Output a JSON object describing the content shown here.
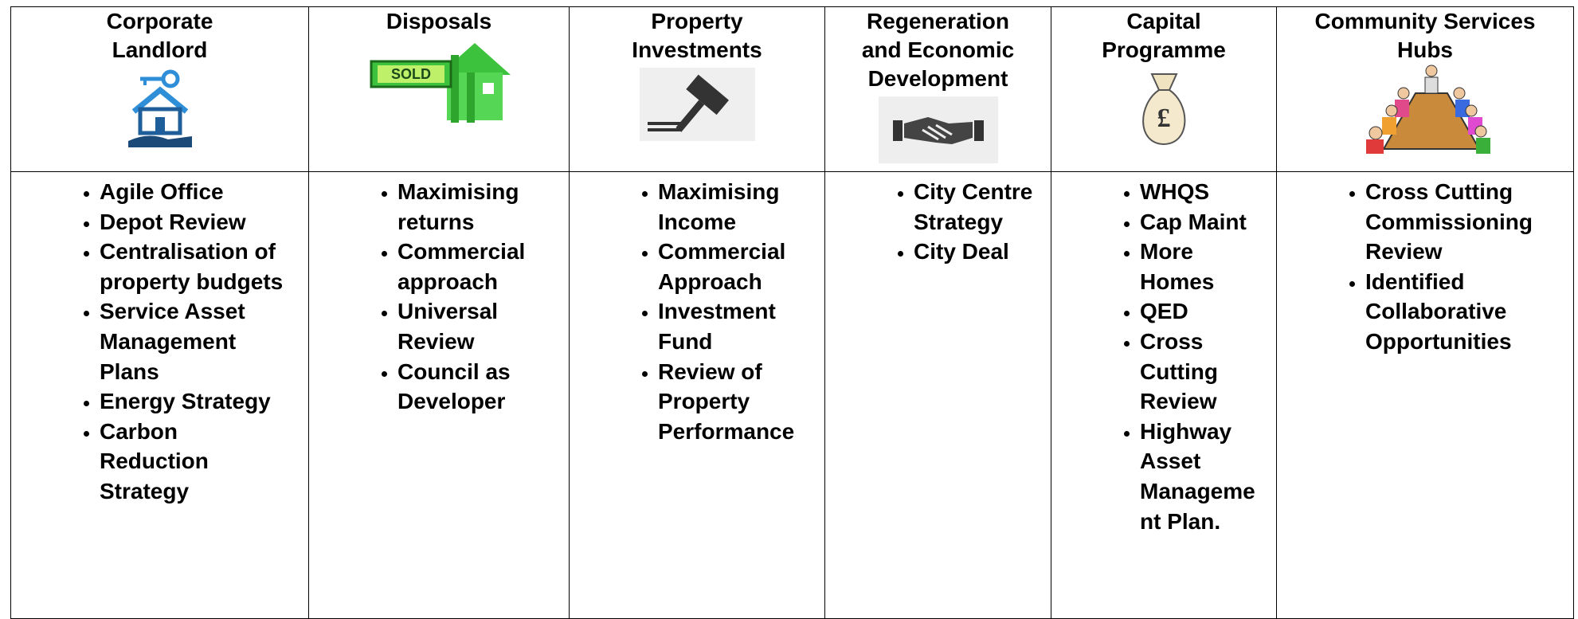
{
  "columns": [
    {
      "title_lines": [
        "Corporate",
        "Landlord"
      ],
      "items": [
        "Agile Office",
        "Depot Review",
        "Centralisation of property budgets",
        "Service Asset Management Plans",
        "Energy Strategy",
        "Carbon Reduction Strategy"
      ]
    },
    {
      "title_lines": [
        "Disposals"
      ],
      "icon_text": "SOLD",
      "items": [
        "Maximising returns",
        "Commercial approach",
        "Universal Review",
        "Council as Developer"
      ]
    },
    {
      "title_lines": [
        "Property",
        "Investments"
      ],
      "items": [
        "Maximising Income",
        "Commercial Approach",
        "Investment Fund",
        "Review of Property Performance"
      ]
    },
    {
      "title_lines": [
        "Regeneration",
        "and Economic",
        "Development"
      ],
      "items": [
        "City Centre Strategy",
        "City Deal"
      ]
    },
    {
      "title_lines": [
        "Capital",
        "Programme"
      ],
      "icon_text": "£",
      "items": [
        "WHQS",
        "Cap Maint",
        "More Homes",
        "QED",
        "Cross Cutting Review",
        "Highway Asset Management Plan."
      ]
    },
    {
      "title_lines": [
        "Community Services",
        "Hubs"
      ],
      "items": [
        "Cross Cutting Commissioning Review",
        "Identified Collaborative Opportunities"
      ]
    }
  ]
}
